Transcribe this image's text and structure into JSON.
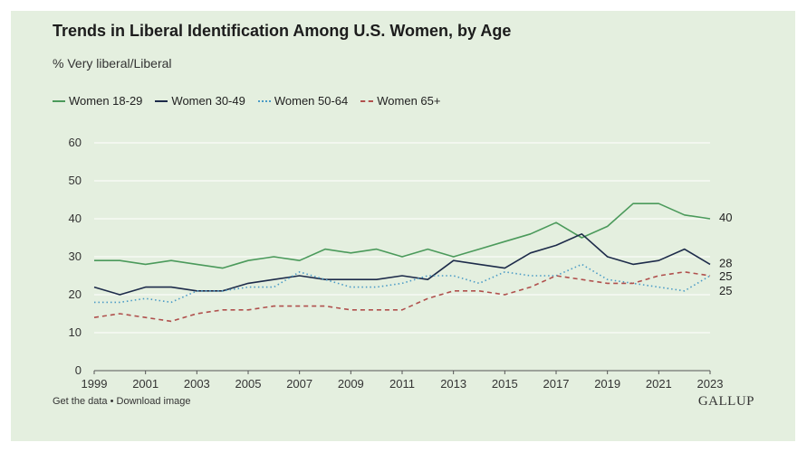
{
  "title": "Trends in Liberal Identification Among U.S. Women, by Age",
  "subtitle": "% Very liberal/Liberal",
  "footer": {
    "get_data": "Get the data",
    "separator": "•",
    "download": "Download image"
  },
  "brand": "GALLUP",
  "colors": {
    "background": "#e4efdf",
    "grid": "#ffffff",
    "axis": "#555555"
  },
  "chart_data": {
    "type": "line",
    "title": "Trends in Liberal Identification Among U.S. Women, by Age",
    "ylabel": "% Very liberal/Liberal",
    "xlabel": "",
    "ylim": [
      0,
      60
    ],
    "yticks": [
      0,
      10,
      20,
      30,
      40,
      50,
      60
    ],
    "xticks": [
      1999,
      2001,
      2003,
      2005,
      2007,
      2009,
      2011,
      2013,
      2015,
      2017,
      2019,
      2021,
      2023
    ],
    "x": [
      1999,
      2000,
      2001,
      2002,
      2003,
      2004,
      2005,
      2006,
      2007,
      2008,
      2009,
      2010,
      2011,
      2012,
      2013,
      2014,
      2015,
      2016,
      2017,
      2018,
      2019,
      2020,
      2021,
      2022,
      2023
    ],
    "legend_position": "top-left",
    "series": [
      {
        "name": "Women 18-29",
        "color": "#4b9a5b",
        "dash": "solid",
        "values": [
          29,
          29,
          28,
          29,
          28,
          27,
          29,
          30,
          29,
          32,
          31,
          32,
          30,
          32,
          30,
          32,
          34,
          36,
          39,
          35,
          38,
          44,
          44,
          41,
          40
        ],
        "end_label": "40"
      },
      {
        "name": "Women 30-49",
        "color": "#1d2b4a",
        "dash": "solid",
        "values": [
          22,
          20,
          22,
          22,
          21,
          21,
          23,
          24,
          25,
          24,
          24,
          24,
          25,
          24,
          29,
          28,
          27,
          31,
          33,
          36,
          30,
          28,
          29,
          32,
          28
        ],
        "end_label": "28"
      },
      {
        "name": "Women 50-64",
        "color": "#4a9bc6",
        "dash": "dotted",
        "values": [
          18,
          18,
          19,
          18,
          21,
          21,
          22,
          22,
          26,
          24,
          22,
          22,
          23,
          25,
          25,
          23,
          26,
          25,
          25,
          28,
          24,
          23,
          22,
          21,
          25
        ],
        "end_label": "25"
      },
      {
        "name": "Women 65+",
        "color": "#b0504d",
        "dash": "dashed",
        "values": [
          14,
          15,
          14,
          13,
          15,
          16,
          16,
          17,
          17,
          17,
          16,
          16,
          16,
          19,
          21,
          21,
          20,
          22,
          25,
          24,
          23,
          23,
          25,
          26,
          25
        ],
        "end_label": "25"
      }
    ]
  }
}
